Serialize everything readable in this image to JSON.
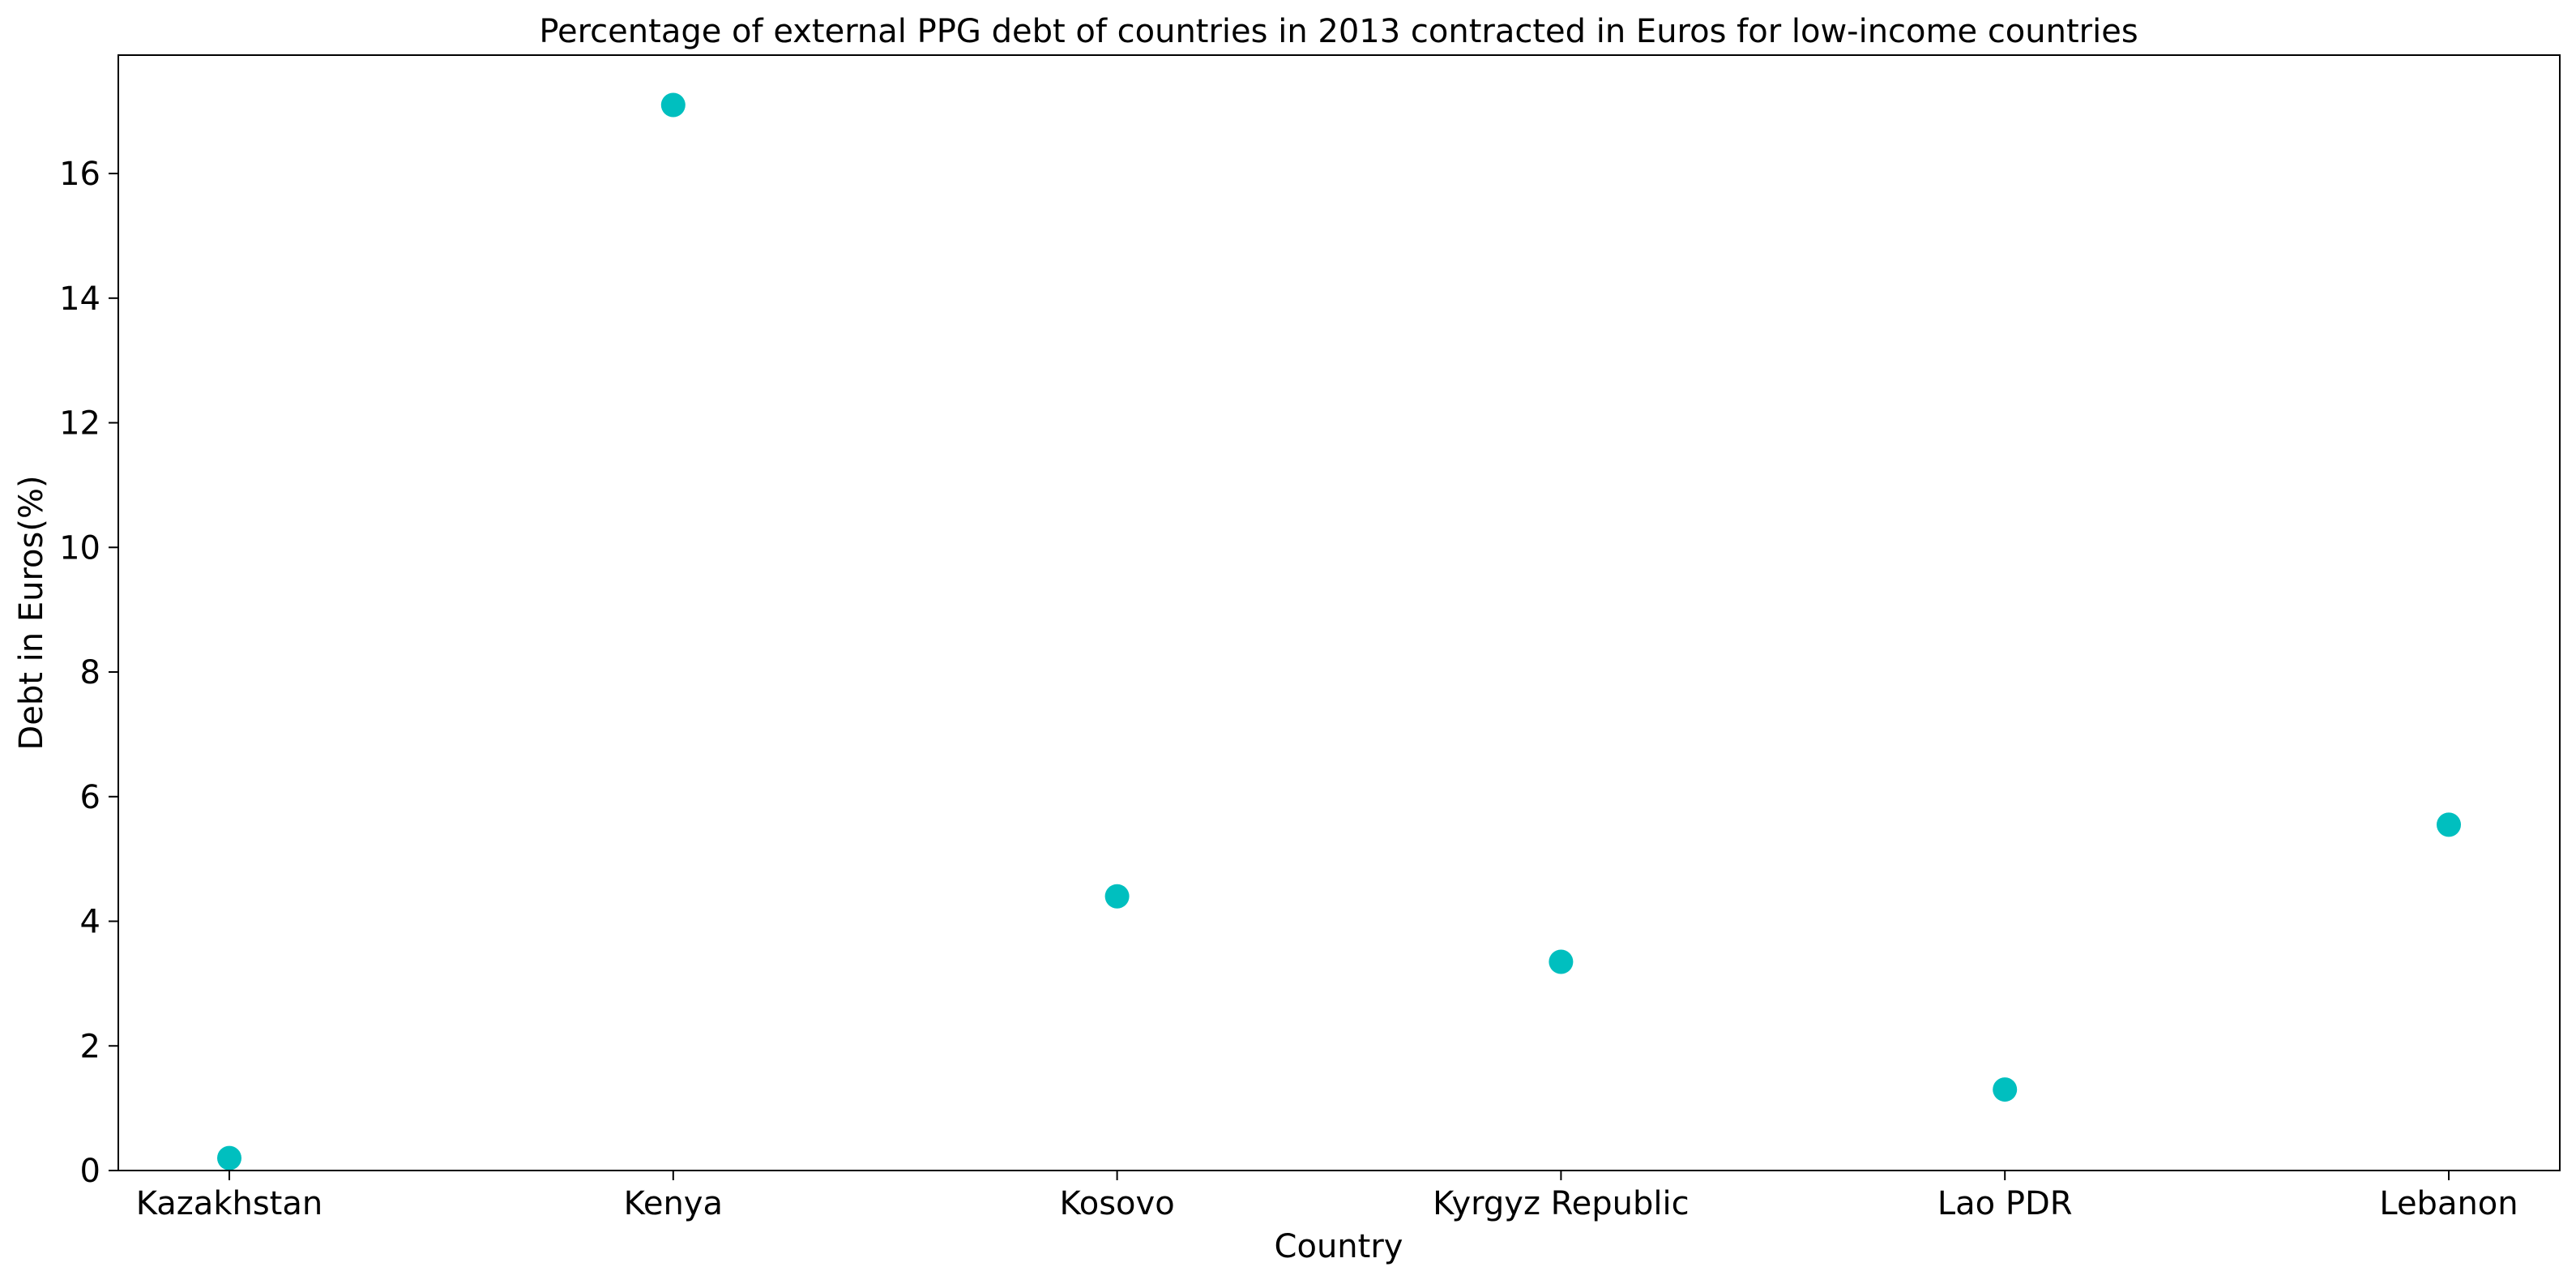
{
  "chart_data": {
    "type": "scatter",
    "title": "Percentage of external PPG debt of countries in 2013 contracted in Euros for low-income countries",
    "xlabel": "Country",
    "ylabel": "Debt in Euros(%)",
    "categories": [
      "Kazakhstan",
      "Kenya",
      "Kosovo",
      "Kyrgyz Republic",
      "Lao PDR",
      "Lebanon"
    ],
    "series": [
      {
        "values": [
          0.2,
          17.1,
          4.4,
          3.35,
          1.3,
          5.55
        ]
      }
    ],
    "ylim": [
      0,
      17.9
    ],
    "yticks": [
      0,
      2,
      4,
      6,
      8,
      10,
      12,
      14,
      16
    ],
    "grid": false,
    "marker_color": "#00bfbf"
  }
}
